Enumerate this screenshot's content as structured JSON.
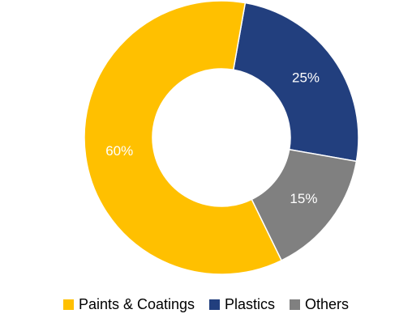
{
  "chart_data": {
    "type": "pie",
    "donut": true,
    "categories": [
      "Paints & Coatings",
      "Plastics",
      "Others"
    ],
    "values": [
      60,
      25,
      15
    ],
    "data_labels": [
      "60%",
      "25%",
      "15%"
    ],
    "colors": [
      "#ffc000",
      "#223f7e",
      "#808080"
    ],
    "legend_position": "bottom"
  },
  "legend": {
    "items": [
      {
        "label": "Paints & Coatings",
        "color": "#ffc000"
      },
      {
        "label": "Plastics",
        "color": "#223f7e"
      },
      {
        "label": "Others",
        "color": "#808080"
      }
    ]
  }
}
